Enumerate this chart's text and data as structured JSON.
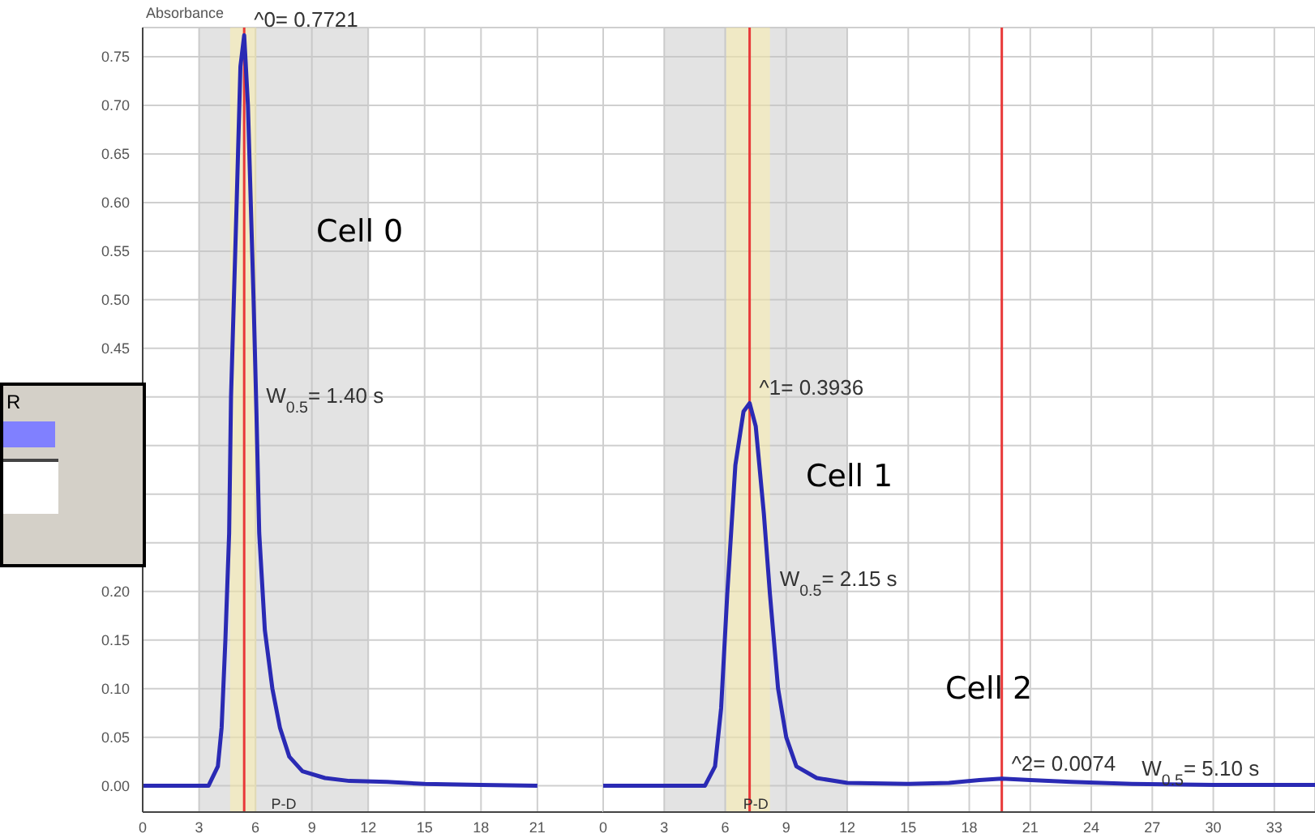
{
  "chart_data": [
    {
      "type": "line",
      "ylabel": "Absorbance",
      "xlim": [
        0,
        24.5
      ],
      "xticks": [
        0,
        3,
        6,
        9,
        12,
        15,
        18,
        21
      ],
      "ylim": [
        -0.027,
        0.78
      ],
      "yticks": [
        {
          "value": 0,
          "label": "0.00"
        },
        0.05,
        {
          "value": 0.1,
          "label": "0.10"
        },
        0.15,
        {
          "value": 0.2,
          "label": "0.20"
        },
        {
          "value": 0.25,
          "label": null
        },
        {
          "value": 0.3,
          "label": null
        },
        {
          "value": 0.35,
          "label": null
        },
        {
          "value": 0.4,
          "label": null
        },
        0.45,
        {
          "value": 0.5,
          "label": "0.50"
        },
        0.55,
        {
          "value": 0.6,
          "label": "0.60"
        },
        0.65,
        {
          "value": 0.7,
          "label": "0.70"
        },
        0.75
      ],
      "grid": true,
      "series": [
        {
          "color": "#2a2ab4",
          "x": [
            0,
            2,
            3.5,
            4,
            4.2,
            4.4,
            4.6,
            4.7,
            5,
            5.2,
            5.4,
            5.6,
            5.9,
            6.05,
            6.2,
            6.5,
            6.9,
            7.3,
            7.8,
            8.5,
            9.7,
            11,
            13,
            15,
            18,
            21
          ],
          "values": [
            0,
            0,
            0,
            0.02,
            0.06,
            0.15,
            0.26,
            0.4,
            0.6,
            0.74,
            0.7721,
            0.7,
            0.5,
            0.386,
            0.26,
            0.16,
            0.1,
            0.06,
            0.03,
            0.015,
            0.008,
            0.005,
            0.004,
            0.002,
            0.001,
            0
          ]
        }
      ],
      "ref_lines": [
        {
          "axis": "x",
          "value": 5.4,
          "color": "#e83838"
        }
      ],
      "bands": [
        {
          "axis": "x",
          "from": 3,
          "to": 12,
          "label": "P-D",
          "color": "#c0c0c0"
        },
        {
          "axis": "x",
          "from": 4.65,
          "to": 6.05,
          "color": "#fff0a0"
        }
      ],
      "annotations": [
        {
          "text": "^0= 0.7721",
          "x": 5.4,
          "y": 0.7721
        },
        {
          "text": "W$_{0.5}$= 1.40 s",
          "x": 6.05,
          "y": 0.386
        },
        "Cell 0",
        "R"
      ]
    },
    {
      "type": "line",
      "xlim": [
        0,
        35
      ],
      "xticks": [
        0,
        3,
        6,
        9,
        12,
        15,
        18,
        21,
        24,
        27,
        30,
        33
      ],
      "ylim": [
        -0.027,
        0.78
      ],
      "yticks": [
        0,
        0.05,
        0.1,
        0.15,
        0.2,
        0.25,
        0.3,
        0.35,
        0.4,
        0.45,
        0.5,
        0.55,
        0.6,
        0.65,
        0.7,
        0.75
      ],
      "grid": true,
      "tick_labels": "x",
      "series": [
        {
          "color": "#2a2ab4",
          "x": [
            0,
            3,
            5,
            5.5,
            5.8,
            6.1,
            6.5,
            6.9,
            7.2,
            7.5,
            7.9,
            8.2,
            8.6,
            9,
            9.5,
            10.5,
            12,
            15,
            17,
            18.5,
            19.6,
            21,
            23,
            26,
            30,
            35
          ],
          "values": [
            0,
            0,
            0,
            0.02,
            0.08,
            0.197,
            0.33,
            0.385,
            0.3936,
            0.37,
            0.28,
            0.197,
            0.1,
            0.05,
            0.02,
            0.008,
            0.003,
            0.002,
            0.003,
            0.006,
            0.0074,
            0.006,
            0.004,
            0.002,
            0.001,
            0.001
          ]
        }
      ],
      "ref_lines": [
        {
          "axis": "x",
          "value": 7.2,
          "color": "#e83838"
        },
        {
          "axis": "x",
          "value": 19.6,
          "color": "#e83838"
        }
      ],
      "bands": [
        {
          "axis": "x",
          "from": 3,
          "to": 12,
          "label": "P-D",
          "color": "#c0c0c0"
        },
        {
          "axis": "x",
          "from": 6.05,
          "to": 8.2,
          "color": "#fff0a0"
        }
      ],
      "annotations": [
        {
          "text": "^1= 0.3936",
          "x": 7.2,
          "y": 0.3936
        },
        {
          "text": "W$_{0.5}$= 2.15 s",
          "x": 8.2,
          "y": 0.197
        },
        {
          "text": "^2= 0.0074",
          "x": 19.6,
          "y": 0.0074
        },
        {
          "text": "W$_{0.5}$= 5.10 s",
          "x": 26,
          "y": 0.002
        },
        "Cell 1",
        "Cell 2"
      ]
    }
  ]
}
